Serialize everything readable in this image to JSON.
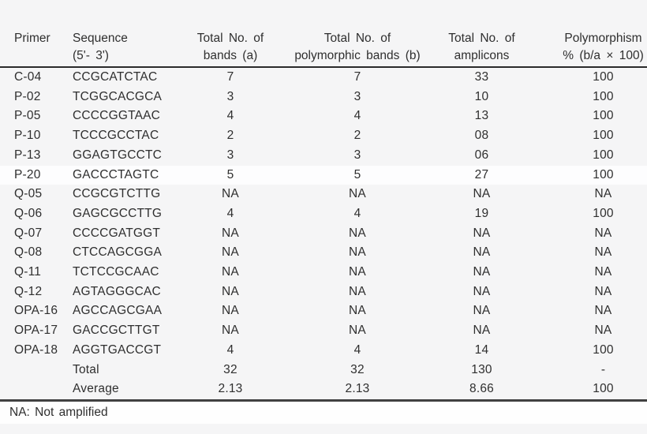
{
  "table": {
    "columns": [
      {
        "line1": "Primer",
        "line2": ""
      },
      {
        "line1": "Sequence",
        "line2": "(5'- 3')"
      },
      {
        "line1": "Total No. of",
        "line2": "bands (a)"
      },
      {
        "line1": "Total No. of",
        "line2": "polymorphic bands (b)"
      },
      {
        "line1": "Total No. of",
        "line2": "amplicons"
      },
      {
        "line1": "Polymorphism",
        "line2": "% (b/a × 100)"
      }
    ],
    "rows": [
      {
        "primer": "C-04",
        "sequence": "CCGCATCTAC",
        "bands": "7",
        "polymorphic": "7",
        "amplicons": "33",
        "polymorphism": "100"
      },
      {
        "primer": "P-02",
        "sequence": "TCGGCACGCA",
        "bands": "3",
        "polymorphic": "3",
        "amplicons": "10",
        "polymorphism": "100"
      },
      {
        "primer": "P-05",
        "sequence": "CCCCGGTAAC",
        "bands": "4",
        "polymorphic": "4",
        "amplicons": "13",
        "polymorphism": "100"
      },
      {
        "primer": "P-10",
        "sequence": "TCCCGCCTAC",
        "bands": "2",
        "polymorphic": "2",
        "amplicons": "08",
        "polymorphism": "100"
      },
      {
        "primer": "P-13",
        "sequence": "GGAGTGCCTC",
        "bands": "3",
        "polymorphic": "3",
        "amplicons": "06",
        "polymorphism": "100"
      },
      {
        "primer": "P-20",
        "sequence": "GACCCTAGTC",
        "bands": "5",
        "polymorphic": "5",
        "amplicons": "27",
        "polymorphism": "100"
      },
      {
        "primer": "Q-05",
        "sequence": "CCGCGTCTTG",
        "bands": "NA",
        "polymorphic": "NA",
        "amplicons": "NA",
        "polymorphism": "NA"
      },
      {
        "primer": "Q-06",
        "sequence": "GAGCGCCTTG",
        "bands": "4",
        "polymorphic": "4",
        "amplicons": "19",
        "polymorphism": "100"
      },
      {
        "primer": "Q-07",
        "sequence": "CCCCGATGGT",
        "bands": "NA",
        "polymorphic": "NA",
        "amplicons": "NA",
        "polymorphism": "NA"
      },
      {
        "primer": "Q-08",
        "sequence": "CTCCAGCGGA",
        "bands": "NA",
        "polymorphic": "NA",
        "amplicons": "NA",
        "polymorphism": "NA"
      },
      {
        "primer": "Q-11",
        "sequence": "TCTCCGCAAC",
        "bands": "NA",
        "polymorphic": "NA",
        "amplicons": "NA",
        "polymorphism": "NA"
      },
      {
        "primer": "Q-12",
        "sequence": "AGTAGGGCAC",
        "bands": "NA",
        "polymorphic": "NA",
        "amplicons": "NA",
        "polymorphism": "NA"
      },
      {
        "primer": "OPA-16",
        "sequence": "AGCCAGCGAA",
        "bands": "NA",
        "polymorphic": "NA",
        "amplicons": "NA",
        "polymorphism": "NA"
      },
      {
        "primer": "OPA-17",
        "sequence": "GACCGCTTGT",
        "bands": "NA",
        "polymorphic": "NA",
        "amplicons": "NA",
        "polymorphism": "NA"
      },
      {
        "primer": "OPA-18",
        "sequence": "AGGTGACCGT",
        "bands": "4",
        "polymorphic": "4",
        "amplicons": "14",
        "polymorphism": "100"
      },
      {
        "primer": "",
        "sequence": "Total",
        "bands": "32",
        "polymorphic": "32",
        "amplicons": "130",
        "polymorphism": "-"
      },
      {
        "primer": "",
        "sequence": "Average",
        "bands": "2.13",
        "polymorphic": "2.13",
        "amplicons": "8.66",
        "polymorphism": "100"
      }
    ],
    "footnote": "NA: Not amplified"
  }
}
